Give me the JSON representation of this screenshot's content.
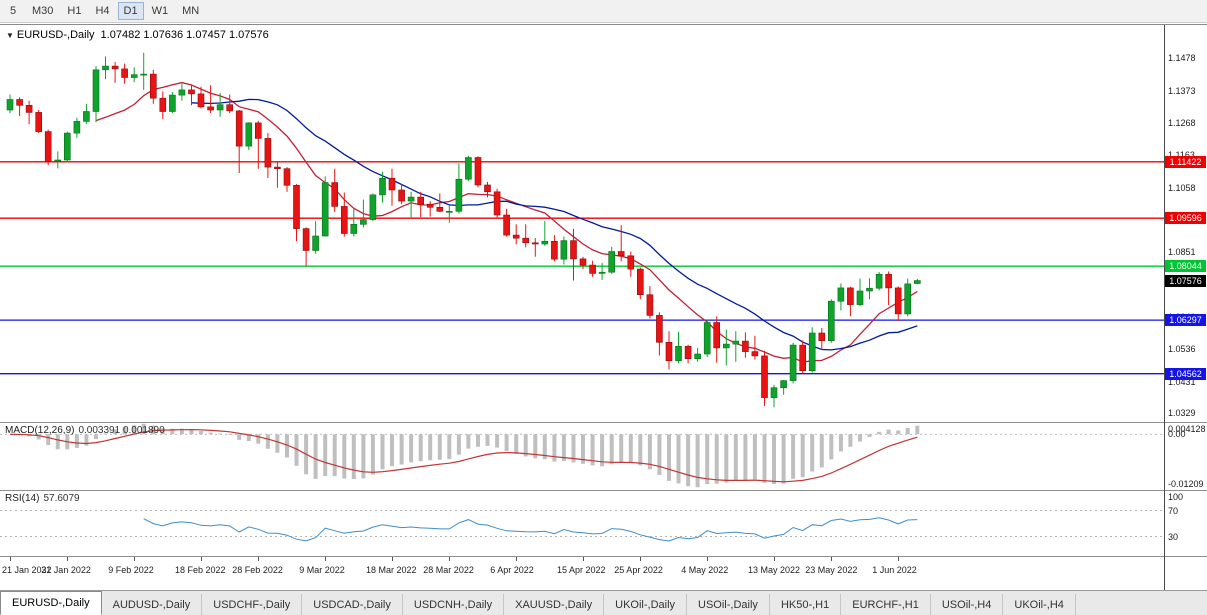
{
  "toolbar": {
    "periods": [
      {
        "label": "5",
        "active": false
      },
      {
        "label": "M30",
        "active": false
      },
      {
        "label": "H1",
        "active": false
      },
      {
        "label": "H4",
        "active": false
      },
      {
        "label": "D1",
        "active": true
      },
      {
        "label": "W1",
        "active": false
      },
      {
        "label": "MN",
        "active": false
      }
    ]
  },
  "chart_data": {
    "type": "candlestick",
    "symbol": "EURUSD-,Daily",
    "timeframe": "Daily",
    "header_ohlc": "1.07482 1.07636 1.07457 1.07576",
    "ohlc_current": {
      "open": 1.07482,
      "high": 1.07636,
      "low": 1.07457,
      "close": 1.07576
    },
    "price_range": {
      "min": 1.03,
      "max": 1.1585
    },
    "candles": [
      [
        1.131,
        1.136,
        1.13,
        1.1344
      ],
      [
        1.1344,
        1.1351,
        1.129,
        1.1325
      ],
      [
        1.1325,
        1.134,
        1.1264,
        1.1302
      ],
      [
        1.1302,
        1.131,
        1.1235,
        1.124
      ],
      [
        1.124,
        1.1246,
        1.1131,
        1.1144
      ],
      [
        1.1144,
        1.1176,
        1.1121,
        1.1148
      ],
      [
        1.1148,
        1.124,
        1.114,
        1.1235
      ],
      [
        1.1235,
        1.1285,
        1.122,
        1.1273
      ],
      [
        1.1273,
        1.133,
        1.1265,
        1.1305
      ],
      [
        1.1305,
        1.1452,
        1.127,
        1.144
      ],
      [
        1.144,
        1.1483,
        1.141,
        1.1452
      ],
      [
        1.1452,
        1.1465,
        1.1398,
        1.1443
      ],
      [
        1.1443,
        1.146,
        1.1395,
        1.1415
      ],
      [
        1.1415,
        1.1448,
        1.14,
        1.1424
      ],
      [
        1.1424,
        1.1495,
        1.1375,
        1.1426
      ],
      [
        1.1426,
        1.144,
        1.133,
        1.1348
      ],
      [
        1.1348,
        1.137,
        1.128,
        1.1305
      ],
      [
        1.1305,
        1.1368,
        1.13,
        1.1358
      ],
      [
        1.1358,
        1.1395,
        1.134,
        1.1375
      ],
      [
        1.1375,
        1.139,
        1.1325,
        1.1362
      ],
      [
        1.1362,
        1.1385,
        1.1315,
        1.132
      ],
      [
        1.132,
        1.139,
        1.13,
        1.131
      ],
      [
        1.131,
        1.1365,
        1.1288,
        1.1327
      ],
      [
        1.1327,
        1.136,
        1.13,
        1.1307
      ],
      [
        1.1307,
        1.131,
        1.1106,
        1.1193
      ],
      [
        1.1193,
        1.127,
        1.118,
        1.1268
      ],
      [
        1.1268,
        1.1275,
        1.112,
        1.1218
      ],
      [
        1.1218,
        1.1235,
        1.109,
        1.1125
      ],
      [
        1.1125,
        1.114,
        1.1058,
        1.112
      ],
      [
        1.112,
        1.1125,
        1.1045,
        1.1066
      ],
      [
        1.1066,
        1.107,
        1.0885,
        1.0926
      ],
      [
        1.0926,
        1.093,
        1.0806,
        1.0855
      ],
      [
        1.0855,
        1.095,
        1.0845,
        1.0902
      ],
      [
        1.0902,
        1.1095,
        1.09,
        1.1075
      ],
      [
        1.1075,
        1.112,
        1.098,
        1.0998
      ],
      [
        1.0998,
        1.1043,
        1.09,
        1.091
      ],
      [
        1.091,
        1.099,
        1.09,
        1.094
      ],
      [
        1.094,
        1.102,
        1.093,
        1.0955
      ],
      [
        1.0955,
        1.104,
        1.095,
        1.1035
      ],
      [
        1.1035,
        1.111,
        1.101,
        1.1089
      ],
      [
        1.1089,
        1.112,
        1.1,
        1.1051
      ],
      [
        1.1051,
        1.107,
        1.1005,
        1.1015
      ],
      [
        1.1015,
        1.1045,
        1.096,
        1.1028
      ],
      [
        1.1028,
        1.1045,
        1.0963,
        1.1005
      ],
      [
        1.1005,
        1.1015,
        1.0965,
        1.0995
      ],
      [
        1.0995,
        1.104,
        1.098,
        1.0982
      ],
      [
        1.0982,
        1.1,
        1.0945,
        1.0982
      ],
      [
        1.0982,
        1.1137,
        1.0975,
        1.1086
      ],
      [
        1.1086,
        1.1162,
        1.108,
        1.1156
      ],
      [
        1.1156,
        1.116,
        1.106,
        1.1067
      ],
      [
        1.1067,
        1.1077,
        1.1027,
        1.1045
      ],
      [
        1.1045,
        1.1055,
        1.096,
        1.097
      ],
      [
        1.097,
        1.099,
        1.09,
        1.0905
      ],
      [
        1.0905,
        1.094,
        1.0875,
        1.0895
      ],
      [
        1.0895,
        1.094,
        1.0865,
        1.088
      ],
      [
        1.088,
        1.0895,
        1.0835,
        1.0876
      ],
      [
        1.0876,
        1.095,
        1.087,
        1.0885
      ],
      [
        1.0885,
        1.0905,
        1.082,
        1.0827
      ],
      [
        1.0827,
        1.09,
        1.081,
        1.0887
      ],
      [
        1.0887,
        1.0925,
        1.0758,
        1.0828
      ],
      [
        1.0828,
        1.0835,
        1.0795,
        1.0808
      ],
      [
        1.0808,
        1.0822,
        1.077,
        1.0781
      ],
      [
        1.0781,
        1.0815,
        1.076,
        1.0785
      ],
      [
        1.0785,
        1.0867,
        1.078,
        1.0852
      ],
      [
        1.0852,
        1.0937,
        1.082,
        1.0838
      ],
      [
        1.0838,
        1.0852,
        1.077,
        1.0795
      ],
      [
        1.0795,
        1.08,
        1.0697,
        1.0712
      ],
      [
        1.0712,
        1.074,
        1.0635,
        1.0645
      ],
      [
        1.0645,
        1.0655,
        1.0515,
        1.0558
      ],
      [
        1.0558,
        1.0594,
        1.047,
        1.0498
      ],
      [
        1.0498,
        1.0592,
        1.049,
        1.0545
      ],
      [
        1.0545,
        1.055,
        1.049,
        1.0505
      ],
      [
        1.0505,
        1.054,
        1.0495,
        1.052
      ],
      [
        1.052,
        1.0632,
        1.051,
        1.0622
      ],
      [
        1.0622,
        1.0642,
        1.0492,
        1.054
      ],
      [
        1.054,
        1.0599,
        1.0483,
        1.0552
      ],
      [
        1.0552,
        1.0594,
        1.0495,
        1.0562
      ],
      [
        1.0562,
        1.059,
        1.0508,
        1.0528
      ],
      [
        1.0528,
        1.0579,
        1.0502,
        1.0514
      ],
      [
        1.0514,
        1.053,
        1.0352,
        1.0379
      ],
      [
        1.0379,
        1.042,
        1.0348,
        1.0411
      ],
      [
        1.0411,
        1.0436,
        1.0388,
        1.0434
      ],
      [
        1.0434,
        1.0556,
        1.0425,
        1.0549
      ],
      [
        1.0549,
        1.0564,
        1.0458,
        1.0466
      ],
      [
        1.0466,
        1.0607,
        1.046,
        1.0588
      ],
      [
        1.0588,
        1.0604,
        1.0533,
        1.0563
      ],
      [
        1.0563,
        1.0697,
        1.0556,
        1.0691
      ],
      [
        1.0691,
        1.0748,
        1.0661,
        1.0734
      ],
      [
        1.0734,
        1.0738,
        1.0642,
        1.068
      ],
      [
        1.068,
        1.0764,
        1.0675,
        1.0724
      ],
      [
        1.0724,
        1.0765,
        1.0697,
        1.0733
      ],
      [
        1.0733,
        1.0786,
        1.0726,
        1.0778
      ],
      [
        1.0778,
        1.0787,
        1.0678,
        1.0734
      ],
      [
        1.0734,
        1.0739,
        1.0627,
        1.065
      ],
      [
        1.065,
        1.0764,
        1.0642,
        1.0747
      ],
      [
        1.07482,
        1.07636,
        1.07457,
        1.07576
      ]
    ],
    "date_ticks": [
      {
        "label": "21 Jan 2022",
        "index": 0
      },
      {
        "label": "31 Jan 2022",
        "index": 6
      },
      {
        "label": "9 Feb 2022",
        "index": 13
      },
      {
        "label": "18 Feb 2022",
        "index": 20
      },
      {
        "label": "28 Feb 2022",
        "index": 26
      },
      {
        "label": "9 Mar 2022",
        "index": 33
      },
      {
        "label": "18 Mar 2022",
        "index": 40
      },
      {
        "label": "28 Mar 2022",
        "index": 46
      },
      {
        "label": "6 Apr 2022",
        "index": 53
      },
      {
        "label": "15 Apr 2022",
        "index": 60
      },
      {
        "label": "25 Apr 2022",
        "index": 66
      },
      {
        "label": "4 May 2022",
        "index": 73
      },
      {
        "label": "13 May 2022",
        "index": 80
      },
      {
        "label": "23 May 2022",
        "index": 86
      },
      {
        "label": "1 Jun 2022",
        "index": 93
      }
    ],
    "price_ticks": [
      {
        "label": "1.1478",
        "value": 1.1478
      },
      {
        "label": "1.1373",
        "value": 1.1373
      },
      {
        "label": "1.1268",
        "value": 1.1268
      },
      {
        "label": "1.1163",
        "value": 1.1163
      },
      {
        "label": "1.1058",
        "value": 1.1058
      },
      {
        "label": "1.0953",
        "value": 1.0953
      },
      {
        "label": "1.0851",
        "value": 1.0851
      },
      {
        "label": "1.0746",
        "value": 1.0746
      },
      {
        "label": "1.0641",
        "value": 1.0641
      },
      {
        "label": "1.0536",
        "value": 1.0536
      },
      {
        "label": "1.0431",
        "value": 1.0431
      },
      {
        "label": "1.0329",
        "value": 1.0329
      }
    ],
    "levels": [
      {
        "value": 1.11422,
        "label": "1.11422",
        "color": "#f00000",
        "role": "resistance"
      },
      {
        "value": 1.09596,
        "label": "1.09596",
        "color": "#f00000",
        "role": "resistance"
      },
      {
        "value": 1.08044,
        "label": "1.08044",
        "color": "#00c432",
        "role": "breakout-level"
      },
      {
        "value": 1.06297,
        "label": "1.06297",
        "color": "#1414e8",
        "role": "support"
      },
      {
        "value": 1.04562,
        "label": "1.04562",
        "color": "#1414e8",
        "role": "support"
      }
    ],
    "current_price": {
      "label": "1.07576",
      "value": 1.07576,
      "color": "#000000"
    },
    "moving_averages": [
      {
        "period": 10,
        "color": "#c22035"
      },
      {
        "period": 20,
        "color": "#001b9c"
      }
    ],
    "indicators": {
      "macd": {
        "name": "MACD(12,26,9)",
        "values_text": "0.003391 0.001890",
        "fast": 12,
        "slow": 26,
        "signal": 9,
        "axis_top": "0.004128",
        "axis_zero": "0.00",
        "axis_bottom": "-0.01209"
      },
      "rsi": {
        "name": "RSI(14)",
        "value": "57.6079",
        "period": 14,
        "axis": [
          "100",
          "70",
          "30"
        ],
        "guide_levels": [
          70,
          30
        ]
      }
    },
    "colors": {
      "up": "#10a32c",
      "up_border": "#067017",
      "down": "#e81414",
      "down_border": "#8f0b0b",
      "macd_hist": "#bfbfbf",
      "macd_signal": "#c23535",
      "rsi_line": "#3e8ecb",
      "background": "#ffffff",
      "axis_text": "#1a1a1a"
    }
  },
  "tabs": {
    "items": [
      {
        "label": "EURUSD-,Daily",
        "active": true
      },
      {
        "label": "AUDUSD-,Daily",
        "active": false
      },
      {
        "label": "USDCHF-,Daily",
        "active": false
      },
      {
        "label": "USDCAD-,Daily",
        "active": false
      },
      {
        "label": "USDCNH-,Daily",
        "active": false
      },
      {
        "label": "XAUUSD-,Daily",
        "active": false
      },
      {
        "label": "UKOil-,Daily",
        "active": false
      },
      {
        "label": "USOil-,Daily",
        "active": false
      },
      {
        "label": "HK50-,H1",
        "active": false
      },
      {
        "label": "EURCHF-,H1",
        "active": false
      },
      {
        "label": "USOil-,H4",
        "active": false
      },
      {
        "label": "UKOil-,H4",
        "active": false
      }
    ]
  }
}
